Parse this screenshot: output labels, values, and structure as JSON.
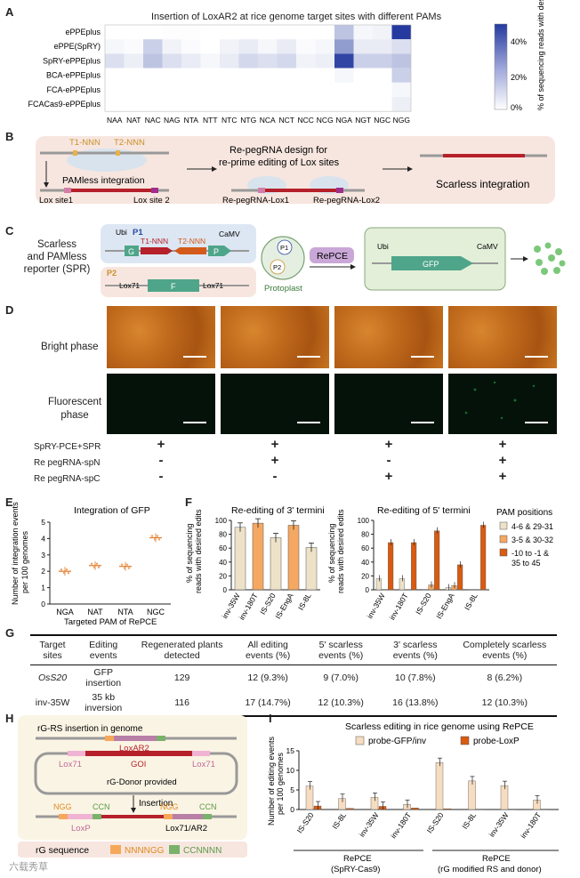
{
  "panels": {
    "a": "A",
    "b": "B",
    "c": "C",
    "d": "D",
    "e": "E",
    "f": "F",
    "g": "G",
    "h": "H",
    "i": "I"
  },
  "A": {
    "title": "Insertion of LoxAR2 at rice genome target sites with different PAMs",
    "colorbar_label": "% of sequencing reads with desired edits",
    "colorbar_ticks": [
      "40%",
      "20%",
      "0%"
    ],
    "chart_data": {
      "type": "heatmap",
      "title": "Insertion of LoxAR2 at rice genome target sites with different PAMs",
      "rows": [
        "ePPEplus",
        "ePPE(SpRY)",
        "SpRY-ePPEplus",
        "BCA-ePPEplus",
        "FCA-ePPEplus",
        "FCACas9-ePPEplus"
      ],
      "columns": [
        "NAA",
        "NAT",
        "NAC",
        "NAG",
        "NTA",
        "NTT",
        "NTC",
        "NTG",
        "NCA",
        "NCT",
        "NCC",
        "NCG",
        "NGA",
        "NGT",
        "NGC",
        "NGG"
      ],
      "values": [
        [
          0,
          0,
          0,
          0.5,
          0.5,
          0,
          0,
          0,
          0,
          0,
          0,
          0,
          15,
          2,
          3,
          50
        ],
        [
          2,
          1,
          12,
          3,
          1,
          0,
          3,
          5,
          2,
          5,
          1,
          2,
          25,
          5,
          5,
          8
        ],
        [
          8,
          4,
          15,
          8,
          5,
          2,
          5,
          10,
          8,
          10,
          3,
          4,
          47,
          12,
          12,
          15
        ],
        [
          0,
          0,
          0,
          0,
          0,
          0,
          0,
          0,
          0,
          0,
          0,
          0,
          2,
          0,
          0,
          12
        ],
        [
          0,
          0,
          0,
          0,
          0,
          0,
          0,
          0,
          0,
          0,
          0,
          0,
          0,
          0,
          0,
          2
        ],
        [
          0,
          0,
          0,
          0,
          0,
          0,
          0,
          0,
          0,
          0,
          0,
          0,
          0,
          0,
          0,
          4
        ]
      ],
      "zlim": [
        0,
        50
      ]
    }
  },
  "B": {
    "t1": "T1-NNN",
    "t2": "T2-NNN",
    "pamless": "PAMless integration",
    "lox1": "Lox site1",
    "lox2": "Lox site 2",
    "redesign1": "Re-pegRNA design for",
    "redesign2": "re-prime editing of Lox sites",
    "rep1": "Re-pegRNA-Lox1",
    "rep2": "Re-pegRNA-Lox2",
    "scarless": "Scarless integration"
  },
  "C": {
    "side1": "Scarless",
    "side2": "and PAMless",
    "side3": "reporter (SPR)",
    "ubi": "Ubi",
    "p1": "P1",
    "t1": "T1-NNN",
    "t2": "T2-NNN",
    "camv": "CaMV",
    "g": "G",
    "p": "P",
    "p2": "P2",
    "lox71a": "Lox71",
    "f": "F",
    "lox71b": "Lox71",
    "proto_p1": "P1",
    "proto_p2": "P2",
    "protoplast": "Protoplast",
    "repce": "RePCE",
    "ubi2": "Ubi",
    "camv2": "CaMV",
    "gfp": "GFP"
  },
  "D": {
    "bright": "Bright phase",
    "fluor1": "Fluorescent",
    "fluor2": "phase",
    "rows": [
      {
        "label": "SpRY-PCE+SPR",
        "vals": [
          "+",
          "+",
          "+",
          "+"
        ]
      },
      {
        "label": "Re pegRNA-spN",
        "vals": [
          "-",
          "+",
          "-",
          "+"
        ]
      },
      {
        "label": "Re pegRNA-spC",
        "vals": [
          "-",
          "-",
          "+",
          "+"
        ]
      }
    ]
  },
  "E": {
    "title": "Integration of GFP",
    "ylabel1": "Number of integration events",
    "ylabel2": "per 100 genomes",
    "xlabel": "Targeted PAM of RePCE",
    "yticks": [
      "5",
      "4",
      "3",
      "2",
      "1",
      "0"
    ],
    "chart_data": {
      "type": "scatter",
      "title": "Integration of GFP",
      "categories": [
        "NGA",
        "NAT",
        "NTA",
        "NGC"
      ],
      "values": [
        2.0,
        2.35,
        2.3,
        4.05
      ],
      "ylim": [
        0,
        5
      ],
      "xlabel": "Targeted PAM of RePCE",
      "ylabel": "Number of integration events per 100 genomes"
    }
  },
  "F": {
    "title3": "Re-editing of 3' termini",
    "title5": "Re-editing of 5' termini",
    "ylabel1": "% of sequencing",
    "ylabel2": "reads with desired edits",
    "yticks": [
      "100",
      "80",
      "60",
      "40",
      "20",
      "0"
    ],
    "legend_title": "PAM positions",
    "legend": [
      "4-6 & 29-31",
      "3-5 & 30-32",
      "-10 to -1 &",
      "35 to 45"
    ],
    "chart_data": [
      {
        "type": "bar",
        "title": "Re-editing of 3' termini",
        "categories": [
          "inv-35W",
          "inv-180T",
          "IS-S20",
          "IS-EngA",
          "IS-8L"
        ],
        "values": [
          90,
          96,
          75,
          93,
          61
        ],
        "ylim": [
          0,
          100
        ]
      },
      {
        "type": "bar",
        "title": "Re-editing of 5' termini",
        "categories": [
          "inv-35W",
          "inv-180T",
          "IS-S20",
          "IS-EngA",
          "IS-8L"
        ],
        "series": [
          {
            "name": "4-6 & 29-31",
            "values": [
              16,
              16,
              0.5,
              3,
              0.5
            ]
          },
          {
            "name": "3-5 & 30-32",
            "values": [
              0.5,
              0.5,
              7,
              6,
              0.5
            ]
          },
          {
            "name": "-10 to -1 & 35 to 45",
            "values": [
              68,
              68,
              85,
              36,
              93
            ]
          }
        ],
        "ylim": [
          0,
          100
        ]
      }
    ]
  },
  "G": {
    "headers": [
      "Target sites",
      "Editing events",
      "Regenerated plants detected",
      "All editing events (%)",
      "5' scarless events (%)",
      "3' scarless events (%)",
      "Completely scarless events (%)"
    ],
    "rows": [
      [
        "OsS20",
        "GFP insertion",
        "129",
        "12 (9.3%)",
        "9 (7.0%)",
        "10 (7.8%)",
        "8 (6.2%)"
      ],
      [
        "inv-35W",
        "35 kb inversion",
        "116",
        "17 (14.7%)",
        "12 (10.3%)",
        "16 (13.8%)",
        "12 (10.3%)"
      ]
    ]
  },
  "H": {
    "title": "rG-RS insertion in genome",
    "loxar2": "LoxAR2",
    "lox71a": "Lox71",
    "goi": "GOI",
    "lox71b": "Lox71",
    "donor": "rG-Donor provided",
    "insertion": "Insertion",
    "ngg1": "NGG",
    "ccn1": "CCN",
    "ngg2": "NGG",
    "ccn2": "CCN",
    "loxp": "LoxP",
    "lox71ar2": "Lox71/AR2",
    "seq_label": "rG sequence",
    "seq1": "NNNNGG",
    "seq2": "CCNNNN"
  },
  "I": {
    "title": "Scarless editing in rice genome using RePCE",
    "ylabel1": "Number of editing events",
    "ylabel2": "per 100 genomes",
    "yticks": [
      "15",
      "10",
      "5",
      "0"
    ],
    "legend": [
      "probe-GFP/inv",
      "probe-LoxP"
    ],
    "group1a": "RePCE",
    "group1b": "(SpRY-Cas9)",
    "group2a": "RePCE",
    "group2b": "(rG modified RS and donor)",
    "chart_data": {
      "type": "bar",
      "title": "Scarless editing in rice genome using RePCE",
      "categories": [
        "IS-S20",
        "IS-8L",
        "inv-35W",
        "inv-180T",
        "IS-S20",
        "IS-8L",
        "inv-35W",
        "inv-180T"
      ],
      "series": [
        {
          "name": "probe-GFP/inv",
          "values": [
            6.0,
            2.8,
            3.1,
            1.3,
            12.0,
            7.3,
            6.1,
            2.4
          ]
        },
        {
          "name": "probe-LoxP",
          "values": [
            0.9,
            0.3,
            0.8,
            0.4,
            0.2,
            0.1,
            0.1,
            0.1
          ]
        }
      ],
      "ylim": [
        0,
        15
      ]
    }
  },
  "watermark": "六载秀草"
}
